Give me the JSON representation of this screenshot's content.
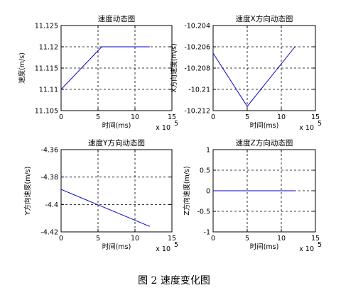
{
  "figure": {
    "caption": "图 2  速度变化图"
  },
  "chart_data": [
    {
      "type": "line",
      "title": "速度动态图",
      "xlabel": "时间(ms)",
      "ylabel": "速度(m/s)",
      "x_multiplier": "x 10",
      "x_exponent": "5",
      "xlim": [
        0,
        15
      ],
      "ylim": [
        11.105,
        11.125
      ],
      "xticks": [
        "0",
        "5",
        "10",
        "15"
      ],
      "yticks": [
        "11.125",
        "11.12",
        "11.115",
        "11.11",
        "11.105"
      ],
      "grid": true,
      "series": [
        {
          "x": [
            0,
            5.5,
            12
          ],
          "y": [
            11.11,
            11.12,
            11.12
          ],
          "color": "#0000cc"
        }
      ]
    },
    {
      "type": "line",
      "title": "速度X方向动态图",
      "xlabel": "时间(ms)",
      "ylabel": "X方向速度(m/s)",
      "x_multiplier": "x 10",
      "x_exponent": "5",
      "xlim": [
        0,
        15
      ],
      "ylim": [
        -10.212,
        -10.204
      ],
      "xticks": [
        "0",
        "5",
        "10",
        "15"
      ],
      "yticks": [
        "-10.204",
        "-10.206",
        "-10.208",
        "-10.21",
        "-10.212"
      ],
      "grid": true,
      "series": [
        {
          "x": [
            0,
            5,
            12
          ],
          "y": [
            -10.2066,
            -10.2116,
            -10.206
          ],
          "color": "#0000cc"
        }
      ]
    },
    {
      "type": "line",
      "title": "速度Y方向动态图",
      "xlabel": "时间(ms)",
      "ylabel": "Y方向速度(m/s)",
      "x_multiplier": "x 10",
      "x_exponent": "5",
      "xlim": [
        0,
        15
      ],
      "ylim": [
        -4.42,
        -4.36
      ],
      "xticks": [
        "0",
        "5",
        "10",
        "15"
      ],
      "yticks": [
        "-4.36",
        "-4.38",
        "-4.4",
        "-4.42"
      ],
      "grid": true,
      "series": [
        {
          "x": [
            0,
            12
          ],
          "y": [
            -4.389,
            -4.416
          ],
          "color": "#0000cc"
        }
      ]
    },
    {
      "type": "line",
      "title": "速度Z方向动态图",
      "xlabel": "时间(ms)",
      "ylabel": "Z方向速度(m/s)",
      "x_multiplier": "x 10",
      "x_exponent": "5",
      "xlim": [
        0,
        15
      ],
      "ylim": [
        -1,
        1
      ],
      "xticks": [
        "0",
        "5",
        "10",
        "15"
      ],
      "yticks": [
        "1",
        "0.5",
        "0",
        "-0.5",
        "-1"
      ],
      "grid": true,
      "series": [
        {
          "x": [
            0,
            12
          ],
          "y": [
            0,
            0
          ],
          "color": "#0000cc"
        }
      ]
    }
  ]
}
